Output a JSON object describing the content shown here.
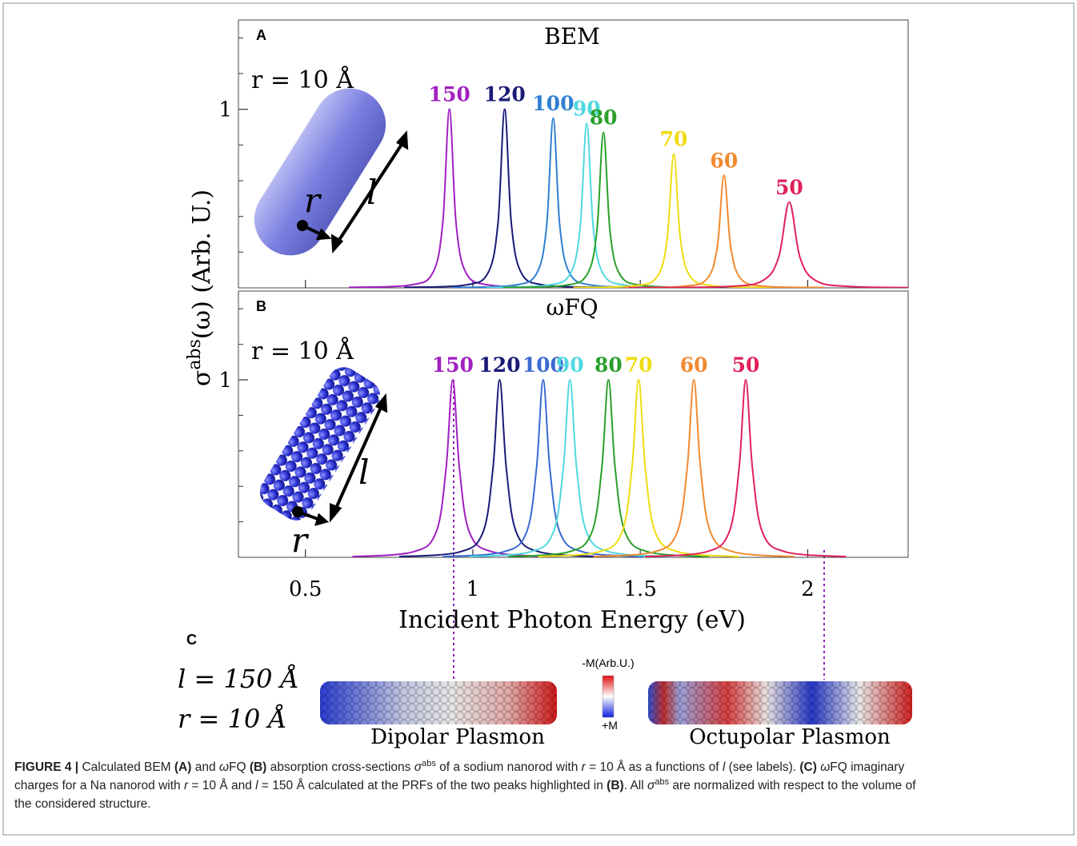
{
  "chart_data": [
    {
      "type": "line",
      "panel": "A",
      "title": "BEM",
      "annotation": "r = 10 Å",
      "xlim": [
        0.3,
        2.3
      ],
      "ylim": [
        0,
        1.5
      ],
      "yticks": [
        1
      ],
      "yminorticks": [
        0.2,
        0.4,
        0.6,
        0.8,
        1.2,
        1.4
      ],
      "series": [
        {
          "name": "150",
          "color": "#a020c0",
          "x": [
            0.63,
            0.81,
            0.88,
            0.91,
            0.93,
            0.95,
            0.98,
            1.05,
            1.23
          ],
          "values": [
            0.003,
            0.015,
            0.083,
            0.36,
            1,
            0.36,
            0.083,
            0.015,
            0.003
          ]
        },
        {
          "name": "120",
          "color": "#1a1a78",
          "x": [
            0.795,
            0.975,
            1.045,
            1.075,
            1.095,
            1.115,
            1.145,
            1.215,
            1.395
          ],
          "values": [
            0.003,
            0.015,
            0.083,
            0.36,
            1,
            0.36,
            0.083,
            0.015,
            0.003
          ]
        },
        {
          "name": "100",
          "color": "#2e7fd0",
          "x": [
            0.94,
            1.12,
            1.19,
            1.22,
            1.24,
            1.26,
            1.29,
            1.36,
            1.54
          ],
          "values": [
            0.002,
            0.014,
            0.079,
            0.34,
            0.95,
            0.34,
            0.079,
            0.014,
            0.002
          ]
        },
        {
          "name": "90",
          "color": "#4fd8e0",
          "x": [
            1.04,
            1.22,
            1.29,
            1.32,
            1.34,
            1.36,
            1.39,
            1.46,
            1.64
          ],
          "values": [
            0.002,
            0.014,
            0.076,
            0.33,
            0.92,
            0.33,
            0.076,
            0.014,
            0.002
          ]
        },
        {
          "name": "80",
          "color": "#2aa02a",
          "x": [
            1.09,
            1.27,
            1.34,
            1.37,
            1.39,
            1.41,
            1.44,
            1.51,
            1.69
          ],
          "values": [
            0.002,
            0.013,
            0.072,
            0.31,
            0.87,
            0.31,
            0.072,
            0.013,
            0.002
          ]
        },
        {
          "name": "70",
          "color": "#f0dc10",
          "x": [
            1.3,
            1.48,
            1.55,
            1.58,
            1.6,
            1.62,
            1.65,
            1.72,
            1.9
          ],
          "values": [
            0.002,
            0.011,
            0.062,
            0.27,
            0.75,
            0.27,
            0.062,
            0.011,
            0.002
          ]
        },
        {
          "name": "60",
          "color": "#f08a30",
          "x": [
            1.45,
            1.63,
            1.7,
            1.73,
            1.75,
            1.77,
            1.8,
            1.87,
            2.05
          ],
          "values": [
            0.002,
            0.009,
            0.052,
            0.23,
            0.63,
            0.23,
            0.052,
            0.009,
            0.002
          ]
        },
        {
          "name": "50",
          "color": "#e0205a",
          "x": [
            1.465,
            1.755,
            1.865,
            1.913,
            1.945,
            1.977,
            2.025,
            2.135,
            2.425
          ],
          "values": [
            0.001,
            0.007,
            0.04,
            0.17,
            0.48,
            0.17,
            0.04,
            0.007,
            0.001
          ]
        }
      ]
    },
    {
      "type": "line",
      "panel": "B",
      "title": "ωFQ",
      "annotation": "r = 10 Å",
      "xlim": [
        0.3,
        2.3
      ],
      "ylim": [
        0,
        1.5
      ],
      "yticks": [
        1
      ],
      "yminorticks": [
        0.2,
        0.4,
        0.6,
        0.8,
        1.2,
        1.4
      ],
      "xticks": [
        0.5,
        1,
        1.5,
        2
      ],
      "x_label": "Incident Photon Energy (eV)",
      "series": [
        {
          "name": "150",
          "color": "#a020c0",
          "x": [
            0.64,
            0.82,
            0.89,
            0.92,
            0.94,
            0.96,
            0.99,
            1.06,
            1.24
          ],
          "values": [
            0.004,
            0.03,
            0.14,
            0.5,
            1,
            0.5,
            0.14,
            0.03,
            0.004
          ]
        },
        {
          "name": "120",
          "color": "#1a1a78",
          "x": [
            0.78,
            0.96,
            1.03,
            1.06,
            1.08,
            1.1,
            1.13,
            1.2,
            1.38
          ],
          "values": [
            0.004,
            0.03,
            0.14,
            0.5,
            1,
            0.5,
            0.14,
            0.03,
            0.004
          ]
        },
        {
          "name": "100",
          "color": "#3a6ad0",
          "x": [
            0.91,
            1.09,
            1.16,
            1.19,
            1.21,
            1.23,
            1.26,
            1.33,
            1.51
          ],
          "values": [
            0.004,
            0.03,
            0.14,
            0.5,
            1,
            0.5,
            0.14,
            0.03,
            0.004
          ]
        },
        {
          "name": "90",
          "color": "#4fd8e0",
          "x": [
            0.99,
            1.17,
            1.24,
            1.27,
            1.29,
            1.31,
            1.34,
            1.41,
            1.59
          ],
          "values": [
            0.004,
            0.03,
            0.14,
            0.5,
            1,
            0.5,
            0.14,
            0.03,
            0.004
          ]
        },
        {
          "name": "80",
          "color": "#2aa02a",
          "x": [
            1.105,
            1.285,
            1.355,
            1.385,
            1.405,
            1.425,
            1.455,
            1.525,
            1.705
          ],
          "values": [
            0.004,
            0.03,
            0.14,
            0.5,
            1,
            0.5,
            0.14,
            0.03,
            0.004
          ]
        },
        {
          "name": "70",
          "color": "#f0dc10",
          "x": [
            1.195,
            1.375,
            1.445,
            1.475,
            1.495,
            1.515,
            1.545,
            1.615,
            1.795
          ],
          "values": [
            0.004,
            0.03,
            0.14,
            0.5,
            1,
            0.5,
            0.14,
            0.03,
            0.004
          ]
        },
        {
          "name": "60",
          "color": "#f08a30",
          "x": [
            1.36,
            1.54,
            1.61,
            1.64,
            1.66,
            1.68,
            1.71,
            1.78,
            1.96
          ],
          "values": [
            0.004,
            0.03,
            0.14,
            0.5,
            1,
            0.5,
            0.14,
            0.03,
            0.004
          ]
        },
        {
          "name": "50",
          "color": "#e0205a",
          "x": [
            1.515,
            1.695,
            1.765,
            1.795,
            1.815,
            1.835,
            1.865,
            1.935,
            2.115
          ],
          "values": [
            0.004,
            0.03,
            0.14,
            0.5,
            1,
            0.5,
            0.14,
            0.03,
            0.004
          ]
        }
      ]
    }
  ],
  "figure": {
    "y_label": {
      "base": "σ",
      "sup": "abs",
      "rest": "(ω) (Arb. U.)"
    },
    "panel_c": {
      "label": "C",
      "length": "l = 150 Å",
      "radius": "r = 10 Å",
      "scale_top": "-M(Arb.U.)",
      "scale_bottom": "+M",
      "rod_labels": [
        "Dipolar Plasmon",
        "Octupolar Plasmon"
      ]
    },
    "rod_symbols": [
      "r",
      "l"
    ],
    "caption": [
      [
        {
          "t": "FIGURE 4 |",
          "s": "b"
        },
        {
          "t": " Calculated BEM "
        },
        {
          "t": "(A)",
          "s": "b"
        },
        {
          "t": " and "
        },
        {
          "t": "ω",
          "s": "i"
        },
        {
          "t": "FQ "
        },
        {
          "t": "(B)",
          "s": "b"
        },
        {
          "t": " absorption cross-sections "
        },
        {
          "t": "σ",
          "s": "i"
        },
        {
          "t": "abs",
          "s": "sup"
        },
        {
          "t": " of a sodium nanorod with "
        },
        {
          "t": "r",
          "s": "i"
        },
        {
          "t": " = 10 Å as a functions of "
        },
        {
          "t": "l",
          "s": "i"
        },
        {
          "t": " (see labels). "
        },
        {
          "t": "(C) ",
          "s": "b"
        },
        {
          "t": "ω",
          "s": "i"
        },
        {
          "t": "FQ imaginary"
        }
      ],
      [
        {
          "t": "charges for a Na nanorod with "
        },
        {
          "t": "r",
          "s": "i"
        },
        {
          "t": " = 10 Å and "
        },
        {
          "t": "l",
          "s": "i"
        },
        {
          "t": " = 150 Å calculated at the PRFs of the two peaks highlighted in "
        },
        {
          "t": "(B)",
          "s": "b"
        },
        {
          "t": ". All "
        },
        {
          "t": "σ",
          "s": "i"
        },
        {
          "t": "abs",
          "s": "sup"
        },
        {
          "t": " are normalized with respect to the volume of"
        }
      ],
      [
        {
          "t": "the considered structure."
        }
      ]
    ]
  }
}
